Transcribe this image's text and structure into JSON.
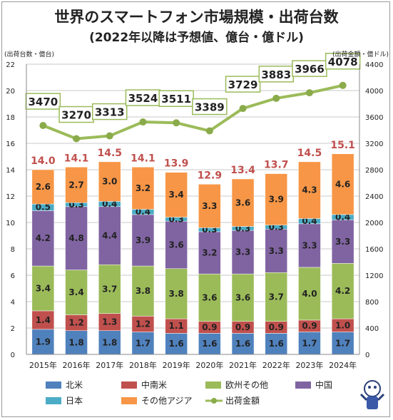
{
  "title_line1": "世界のスマートフォン市場規模・出荷台数",
  "title_line2": "(2022年以降は予想値、億台・億ドル)",
  "chart_data": {
    "type": "bar",
    "stacked": true,
    "left_axis_unit": "(出荷台数・億台)",
    "right_axis_unit": "(出荷金額・億ドル)",
    "categories": [
      "2015年",
      "2016年",
      "2017年",
      "2018年",
      "2019年",
      "2020年",
      "2021年",
      "2022年",
      "2023年",
      "2024年"
    ],
    "ylim": [
      0,
      22
    ],
    "yticks": [
      0,
      2,
      4,
      6,
      8,
      10,
      12,
      14,
      16,
      18,
      20,
      22
    ],
    "y2lim": [
      0,
      4400
    ],
    "y2ticks": [
      0,
      400,
      800,
      1200,
      1600,
      2000,
      2400,
      2800,
      3200,
      3600,
      4000,
      4400
    ],
    "series": [
      {
        "name": "北米",
        "color": "#4f81bd",
        "values": [
          1.9,
          1.8,
          1.8,
          1.7,
          1.6,
          1.6,
          1.6,
          1.6,
          1.7,
          1.7
        ]
      },
      {
        "name": "中南米",
        "color": "#c0504d",
        "values": [
          1.4,
          1.2,
          1.3,
          1.2,
          1.1,
          0.9,
          0.9,
          0.9,
          0.9,
          1.0
        ]
      },
      {
        "name": "欧州その他",
        "color": "#9bbb59",
        "values": [
          3.4,
          3.4,
          3.7,
          3.8,
          3.8,
          3.6,
          3.6,
          3.7,
          4.0,
          4.2
        ]
      },
      {
        "name": "中国",
        "color": "#8064a2",
        "values": [
          4.2,
          4.8,
          4.4,
          3.9,
          3.6,
          3.2,
          3.3,
          3.3,
          3.3,
          3.3
        ]
      },
      {
        "name": "日本",
        "color": "#4bacc6",
        "values": [
          0.5,
          0.3,
          0.4,
          0.4,
          0.3,
          0.3,
          0.3,
          0.3,
          0.4,
          0.4
        ]
      },
      {
        "name": "その他アジア",
        "color": "#f79646",
        "values": [
          2.6,
          2.7,
          3.0,
          3.2,
          3.4,
          3.3,
          3.6,
          3.9,
          4.3,
          4.6
        ]
      }
    ],
    "totals": [
      14.0,
      14.1,
      14.5,
      14.1,
      13.9,
      12.9,
      13.4,
      13.7,
      14.5,
      15.1
    ],
    "line_series": {
      "name": "出荷金額",
      "color": "#9bbb59",
      "values": [
        3470,
        3270,
        3313,
        3524,
        3511,
        3389,
        3729,
        3883,
        3966,
        4078
      ]
    },
    "grid": true,
    "legend_placement": "bottom"
  }
}
